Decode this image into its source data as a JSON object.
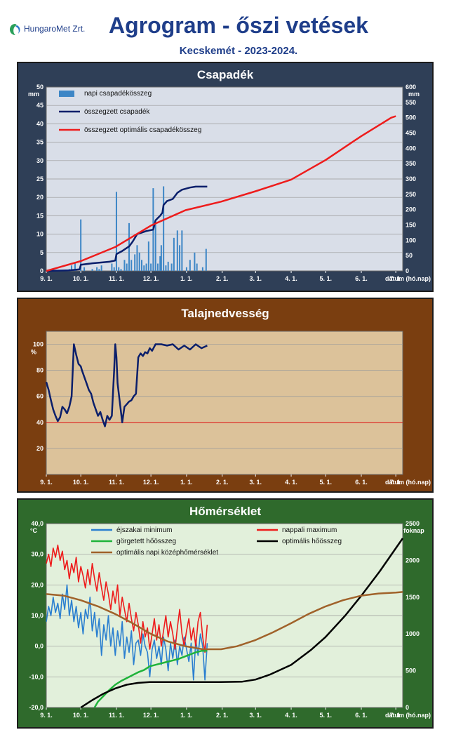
{
  "header": {
    "logo_text": "HungaroMet Zrt.",
    "title": "Agrogram - őszi vetések",
    "subtitle": "Kecskemét - 2023-2024."
  },
  "colors": {
    "precip_panel": "#2f3f57",
    "soil_panel": "#7a3e10",
    "temp_panel": "#2f6a2c",
    "precip_plot": "#d9dee8",
    "soil_plot": "#dcc29a",
    "temp_plot": "#e2f0db",
    "daily_bar": "#3d86c6",
    "cum_precip": "#0b1f6b",
    "optimal": "#ee1c1c",
    "night_min": "#2a7fd0",
    "day_max": "#ee1c1c",
    "rolling_heat": "#1fb33a",
    "optimal_heat": "#000000",
    "optimal_mean": "#a0622a"
  },
  "x_ticks": [
    "9. 1.",
    "10. 1.",
    "11. 1.",
    "12. 1.",
    "1. 1.",
    "2. 1.",
    "3. 1.",
    "4. 1.",
    "5. 1.",
    "6. 1.",
    "7. 1."
  ],
  "x_axis_label": "dátum (hó.nap)",
  "chart_data": [
    {
      "type": "bar",
      "title": "Csapadék",
      "y_unit_left": "mm",
      "y_unit_right": "mm",
      "ylim": [
        0,
        50
      ],
      "ylim_right": [
        0,
        600
      ],
      "y_ticks_left": [
        0,
        5,
        10,
        15,
        20,
        25,
        30,
        35,
        40,
        45,
        50
      ],
      "y_ticks_right": [
        0,
        50,
        100,
        150,
        200,
        250,
        300,
        350,
        400,
        450,
        500,
        550,
        600
      ],
      "legend_position": "top-left",
      "series": [
        {
          "name": "napi csapadékösszeg",
          "kind": "bar",
          "axis": "left",
          "x": [
            20,
            22,
            25,
            30,
            33,
            40,
            44,
            46,
            48,
            57,
            59,
            61,
            63,
            65,
            68,
            70,
            72,
            74,
            77,
            79,
            81,
            83,
            85,
            87,
            89,
            91,
            93,
            95,
            97,
            99,
            100,
            102,
            104,
            106,
            109,
            111,
            114,
            116,
            118,
            122,
            125,
            129,
            131,
            136,
            139
          ],
          "values": [
            0.5,
            1.5,
            2,
            14,
            1,
            0.5,
            1,
            0.5,
            1.5,
            2,
            1,
            21.5,
            1,
            0.5,
            3,
            2,
            13,
            3,
            4.5,
            7,
            5,
            3,
            1.5,
            2,
            8,
            2,
            22.5,
            13,
            2,
            4,
            7,
            23,
            1.5,
            2.5,
            2,
            9,
            11,
            7,
            11,
            1,
            3,
            5,
            2,
            1,
            6
          ]
        },
        {
          "name": "összegzett csapadék",
          "kind": "line",
          "axis": "right",
          "x": [
            0,
            20,
            29,
            30,
            40,
            46,
            55,
            60,
            61,
            66,
            72,
            75,
            79,
            87,
            93,
            95,
            99,
            101,
            102,
            105,
            110,
            114,
            118,
            125,
            130,
            139,
            140
          ],
          "values": [
            0,
            2,
            5,
            20,
            25,
            27,
            30,
            34,
            55,
            65,
            80,
            95,
            120,
            130,
            135,
            165,
            180,
            190,
            215,
            228,
            235,
            255,
            265,
            272,
            275,
            275,
            275
          ]
        },
        {
          "name": "összegzett optimális csapadékösszeg",
          "kind": "line",
          "axis": "right",
          "x": [
            0,
            30,
            60,
            91,
            121,
            152,
            182,
            213,
            243,
            274,
            300,
            304
          ],
          "values": [
            0,
            32,
            78,
            148,
            198,
            226,
            260,
            298,
            362,
            440,
            500,
            505
          ]
        }
      ]
    },
    {
      "type": "line",
      "title": "Talajnedvesség",
      "y_unit_left": "%",
      "ylim": [
        0,
        110
      ],
      "y_ticks_left": [
        20,
        40,
        60,
        80,
        100
      ],
      "threshold": 40,
      "series": [
        {
          "name": "",
          "kind": "line",
          "axis": "left",
          "x": [
            0,
            2,
            4,
            6,
            8,
            10,
            12,
            14,
            16,
            18,
            20,
            22,
            24,
            26,
            28,
            30,
            31,
            33,
            35,
            37,
            39,
            41,
            43,
            45,
            47,
            49,
            51,
            53,
            55,
            57,
            59,
            60,
            61,
            62,
            64,
            66,
            68,
            70,
            72,
            74,
            76,
            78,
            80,
            82,
            84,
            86,
            88,
            90,
            92,
            95,
            98,
            100,
            105,
            110,
            115,
            120,
            125,
            130,
            135,
            140
          ],
          "values": [
            71,
            65,
            57,
            50,
            45,
            41,
            44,
            52,
            50,
            47,
            52,
            60,
            100,
            92,
            85,
            83,
            80,
            75,
            70,
            65,
            62,
            55,
            50,
            45,
            48,
            42,
            37,
            45,
            42,
            45,
            80,
            100,
            90,
            70,
            55,
            40,
            52,
            54,
            56,
            57,
            60,
            62,
            90,
            93,
            91,
            94,
            93,
            97,
            95,
            100,
            100,
            100,
            99,
            100,
            96,
            99,
            96,
            100,
            97,
            99
          ]
        }
      ]
    },
    {
      "type": "line",
      "title": "Hőmérséklet",
      "y_unit_left": "°C",
      "y_unit_right": "foknap",
      "ylim": [
        -20,
        40
      ],
      "ylim_right": [
        0,
        2500
      ],
      "y_ticks_left": [
        "-20,0",
        "-10,0",
        "0,0",
        "10,0",
        "20,0",
        "30,0",
        "40,0"
      ],
      "y_ticks_right": [
        0,
        500,
        1000,
        1500,
        2000,
        2500
      ],
      "legend_position": "top",
      "series": [
        {
          "name": "éjszakai minimum",
          "kind": "line",
          "axis": "left",
          "x": [
            0,
            2,
            4,
            6,
            8,
            10,
            12,
            14,
            16,
            18,
            20,
            22,
            24,
            26,
            28,
            30,
            32,
            34,
            36,
            38,
            40,
            42,
            44,
            46,
            48,
            50,
            52,
            54,
            56,
            58,
            60,
            62,
            64,
            66,
            68,
            70,
            72,
            74,
            76,
            78,
            80,
            82,
            84,
            86,
            88,
            90,
            92,
            94,
            96,
            98,
            100,
            102,
            104,
            106,
            108,
            110,
            112,
            114,
            116,
            118,
            120,
            122,
            124,
            126,
            128,
            130,
            132,
            134,
            136,
            138,
            140
          ],
          "values": [
            8,
            13,
            10,
            16,
            11,
            14,
            9,
            17,
            12,
            20,
            10,
            15,
            8,
            13,
            6,
            11,
            4,
            12,
            9,
            16,
            5,
            11,
            3,
            9,
            -3,
            7,
            2,
            10,
            0,
            6,
            -3,
            5,
            0,
            8,
            -4,
            3,
            -2,
            5,
            -6,
            1,
            2,
            -3,
            4,
            0,
            -2,
            -10,
            -1,
            2,
            -4,
            0,
            -6,
            3,
            -1,
            -8,
            1,
            -4,
            2,
            -6,
            0,
            -3,
            3,
            -1,
            -5,
            1,
            -11,
            2,
            -3,
            4,
            0,
            -11,
            1
          ]
        },
        {
          "name": "nappali maximum",
          "kind": "line",
          "axis": "left",
          "x": [
            0,
            2,
            4,
            6,
            8,
            10,
            12,
            14,
            16,
            18,
            20,
            22,
            24,
            26,
            28,
            30,
            32,
            34,
            36,
            38,
            40,
            42,
            44,
            46,
            48,
            50,
            52,
            54,
            56,
            58,
            60,
            62,
            64,
            66,
            68,
            70,
            72,
            74,
            76,
            78,
            80,
            82,
            84,
            86,
            88,
            90,
            92,
            94,
            96,
            98,
            100,
            102,
            104,
            106,
            108,
            110,
            112,
            114,
            116,
            118,
            120,
            122,
            124,
            126,
            128,
            130,
            132,
            134,
            136,
            138,
            140
          ],
          "values": [
            27,
            30,
            26,
            32,
            29,
            33,
            28,
            31,
            25,
            28,
            22,
            27,
            24,
            29,
            21,
            26,
            23,
            19,
            25,
            20,
            27,
            22,
            18,
            24,
            19,
            15,
            21,
            17,
            12,
            18,
            14,
            20,
            10,
            16,
            12,
            8,
            14,
            9,
            5,
            11,
            7,
            1,
            8,
            3,
            6,
            -1,
            4,
            9,
            2,
            7,
            0,
            5,
            10,
            3,
            8,
            4,
            -1,
            6,
            12,
            4,
            0,
            5,
            9,
            2,
            6,
            0,
            8,
            11,
            3,
            -2,
            7
          ]
        },
        {
          "name": "görgetett hőösszeg",
          "kind": "line",
          "axis": "right",
          "x": [
            42,
            45,
            50,
            55,
            60,
            65,
            70,
            75,
            80,
            85,
            90,
            95,
            100,
            105,
            110,
            115,
            120,
            125,
            130,
            135,
            140
          ],
          "values": [
            0,
            80,
            160,
            240,
            310,
            360,
            400,
            440,
            480,
            510,
            560,
            580,
            600,
            620,
            640,
            660,
            690,
            720,
            750,
            770,
            770
          ]
        },
        {
          "name": "optimális hőösszeg",
          "kind": "line",
          "axis": "right",
          "x": [
            30,
            40,
            50,
            60,
            70,
            80,
            90,
            100,
            120,
            150,
            170,
            182,
            195,
            213,
            230,
            243,
            260,
            274,
            290,
            310
          ],
          "values": [
            0,
            100,
            190,
            260,
            310,
            335,
            345,
            345,
            345,
            345,
            350,
            380,
            450,
            580,
            780,
            960,
            1250,
            1520,
            1850,
            2300
          ]
        },
        {
          "name": "optimális napi középhőmérséklet",
          "kind": "line",
          "axis": "left",
          "x": [
            0,
            15,
            30,
            45,
            60,
            75,
            91,
            106,
            121,
            136,
            152,
            166,
            182,
            197,
            213,
            228,
            243,
            258,
            274,
            289,
            304,
            310
          ],
          "values": [
            17,
            16.5,
            15,
            13,
            10.5,
            7.5,
            4,
            1.5,
            0,
            -1,
            -1,
            0,
            2,
            4.5,
            7.5,
            10.5,
            13,
            15,
            16.5,
            17.2,
            17.5,
            17.7
          ]
        }
      ]
    }
  ]
}
